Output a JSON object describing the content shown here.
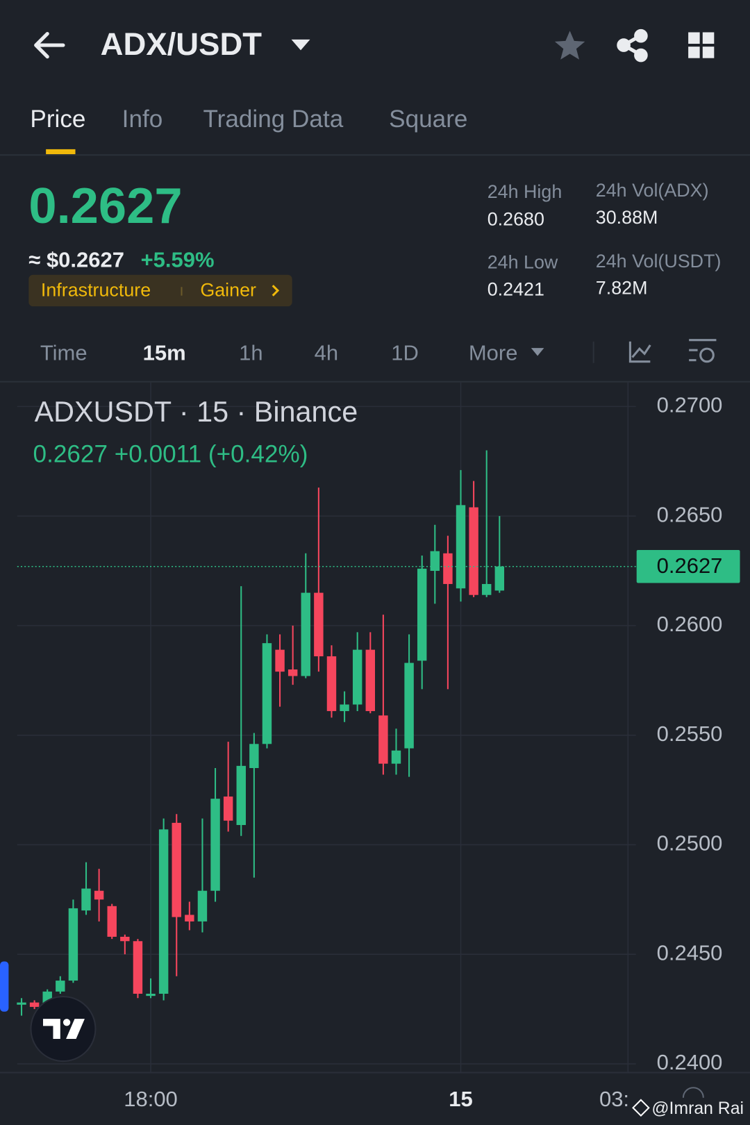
{
  "header": {
    "pair": "ADX/USDT"
  },
  "tabs": [
    "Price",
    "Info",
    "Trading Data",
    "Square"
  ],
  "price": {
    "last": "0.2627",
    "approx": "≈ $0.2627",
    "change": "+5.59%",
    "tags": [
      "Infrastructure",
      "Gainer"
    ]
  },
  "stats": [
    {
      "label": "24h High",
      "value": "0.2680"
    },
    {
      "label": "24h Vol(ADX)",
      "value": "30.88M"
    },
    {
      "label": "24h Low",
      "value": "0.2421"
    },
    {
      "label": "24h Vol(USDT)",
      "value": "7.82M"
    }
  ],
  "intervals": [
    "Time",
    "15m",
    "1h",
    "4h",
    "1D",
    "More"
  ],
  "watermark": "@Imran Rai",
  "chart_data": {
    "type": "candlestick",
    "title": "ADXUSDT · 15 · Binance",
    "subtitle": "0.2627 +0.0011 (+0.42%)",
    "categories": [
      null,
      null,
      null,
      null,
      null,
      null,
      null,
      null,
      null,
      null,
      "18:00",
      null,
      null,
      null,
      null,
      null,
      null,
      null,
      null,
      null,
      null,
      null,
      null,
      null,
      null,
      null,
      null,
      null,
      null,
      null,
      null,
      null,
      null,
      null,
      "15",
      null,
      null,
      null
    ],
    "x_edge_label": "03:",
    "open": [
      0.2427,
      0.2428,
      0.2427,
      0.2433,
      0.2438,
      0.247,
      0.2479,
      0.2472,
      0.2458,
      0.2456,
      0.2431,
      0.2432,
      0.251,
      0.2468,
      0.2465,
      0.2479,
      0.2522,
      0.2509,
      0.2535,
      0.2546,
      0.2589,
      0.258,
      0.2577,
      0.2615,
      0.2586,
      0.2561,
      0.2564,
      0.2589,
      0.2559,
      0.2537,
      0.2544,
      0.2584,
      0.2625,
      0.2633,
      0.2617,
      0.2654,
      0.2614,
      0.2616
    ],
    "high": [
      0.243,
      0.2429,
      0.2434,
      0.244,
      0.2475,
      0.2492,
      0.2489,
      0.2473,
      0.2459,
      0.2457,
      0.2439,
      0.2512,
      0.2514,
      0.2474,
      0.2512,
      0.2535,
      0.2547,
      0.2618,
      0.2551,
      0.2596,
      0.2596,
      0.26,
      0.2633,
      0.2663,
      0.2591,
      0.257,
      0.2597,
      0.2597,
      0.2605,
      0.2553,
      0.2596,
      0.2632,
      0.2646,
      0.2641,
      0.2671,
      0.2666,
      0.268,
      0.265
    ],
    "low": [
      0.2422,
      0.2425,
      0.2423,
      0.2432,
      0.2437,
      0.2468,
      0.2465,
      0.2457,
      0.245,
      0.243,
      0.243,
      0.2429,
      0.244,
      0.2461,
      0.246,
      0.2474,
      0.2506,
      0.2504,
      0.2485,
      0.2544,
      0.2563,
      0.2573,
      0.2576,
      0.2579,
      0.2558,
      0.2556,
      0.2561,
      0.256,
      0.2532,
      0.2532,
      0.2531,
      0.2571,
      0.261,
      0.2571,
      0.2611,
      0.2613,
      0.2613,
      0.2615
    ],
    "close": [
      0.2428,
      0.2426,
      0.2433,
      0.2438,
      0.2471,
      0.248,
      0.2475,
      0.2458,
      0.2456,
      0.2432,
      0.2432,
      0.2507,
      0.2467,
      0.2465,
      0.2479,
      0.2521,
      0.2511,
      0.2536,
      0.2546,
      0.2592,
      0.2579,
      0.2577,
      0.2615,
      0.2586,
      0.2561,
      0.2564,
      0.2589,
      0.2561,
      0.2537,
      0.2543,
      0.2583,
      0.2626,
      0.2634,
      0.2619,
      0.2655,
      0.2614,
      0.2619,
      0.2627
    ],
    "up_color": "#2ebd85",
    "down_color": "#f6465d",
    "last": 0.2627,
    "ylim": [
      0.2396,
      0.2711
    ],
    "yticks": [
      {
        "value": 0.27,
        "label": "0.2700"
      },
      {
        "value": 0.265,
        "label": "0.2650"
      },
      {
        "value": 0.26,
        "label": "0.2600"
      },
      {
        "value": 0.255,
        "label": "0.2550"
      },
      {
        "value": 0.25,
        "label": "0.2500"
      },
      {
        "value": 0.245,
        "label": "0.2450"
      },
      {
        "value": 0.24,
        "label": "0.2400"
      }
    ],
    "grid": true
  }
}
